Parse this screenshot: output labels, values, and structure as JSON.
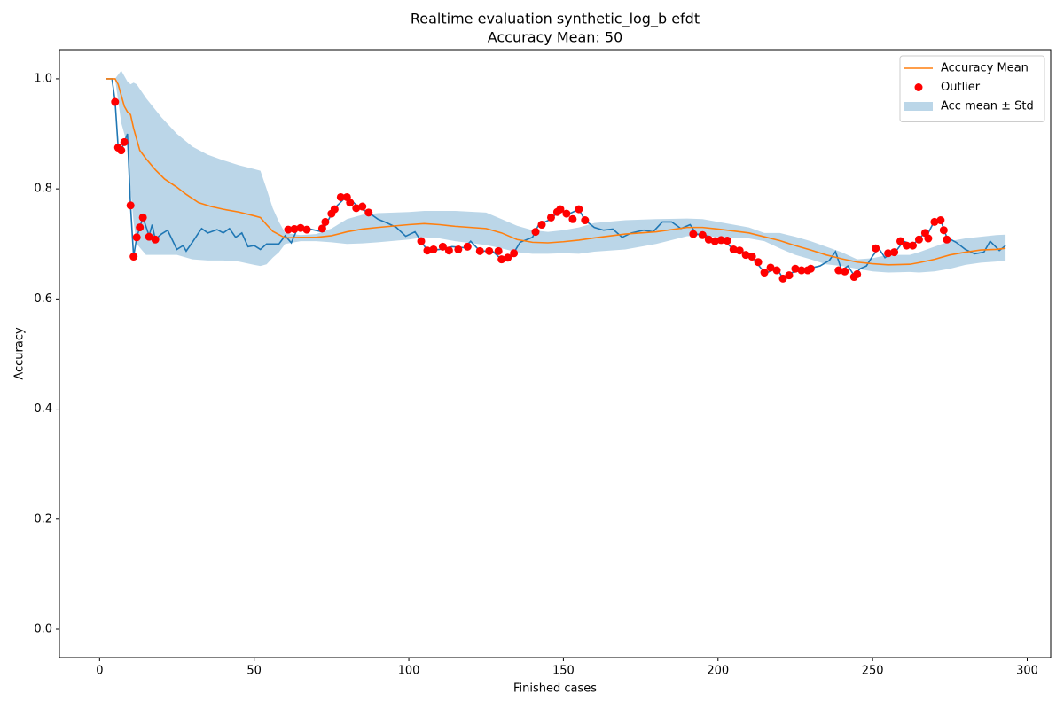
{
  "chart_data": {
    "type": "line",
    "title": "Realtime evaluation synthetic_log_b efdt",
    "subtitle": "Accuracy Mean: 50",
    "xlabel": "Finished cases",
    "ylabel": "Accuracy",
    "xlim": [
      -13,
      307.6
    ],
    "ylim": [
      -0.0515,
      1.053
    ],
    "xticks": [
      0,
      50,
      100,
      150,
      200,
      250,
      300
    ],
    "yticks": [
      {
        "value": 0,
        "label": "0.0"
      },
      {
        "value": 0.2,
        "label": "0.2"
      },
      {
        "value": 0.4,
        "label": "0.4"
      },
      {
        "value": 0.6,
        "label": "0.6"
      },
      {
        "value": 0.8,
        "label": "0.8"
      },
      {
        "value": 1,
        "label": "1.0"
      }
    ],
    "legend": "upper right",
    "band": {
      "name": "Acc mean ± Std",
      "color": "#1f77b4",
      "opacity": 0.3,
      "x": [
        2,
        5,
        7,
        9,
        10,
        11,
        12,
        15,
        20,
        25,
        30,
        35,
        40,
        45,
        50,
        52,
        54,
        56,
        58,
        60,
        65,
        70,
        75,
        80,
        85,
        90,
        100,
        105,
        110,
        115,
        125,
        130,
        135,
        140,
        145,
        150,
        155,
        160,
        170,
        180,
        190,
        195,
        200,
        210,
        215,
        220,
        225,
        230,
        235,
        240,
        245,
        250,
        255,
        262,
        265,
        270,
        275,
        280,
        285,
        290,
        293
      ],
      "upper": [
        1.0,
        1.0,
        1.015,
        0.995,
        0.99,
        0.993,
        0.99,
        0.965,
        0.93,
        0.9,
        0.877,
        0.862,
        0.852,
        0.843,
        0.836,
        0.833,
        0.8,
        0.765,
        0.74,
        0.72,
        0.716,
        0.718,
        0.728,
        0.745,
        0.753,
        0.756,
        0.758,
        0.76,
        0.76,
        0.76,
        0.757,
        0.745,
        0.733,
        0.725,
        0.722,
        0.725,
        0.73,
        0.738,
        0.743,
        0.745,
        0.746,
        0.745,
        0.74,
        0.73,
        0.72,
        0.72,
        0.713,
        0.705,
        0.695,
        0.685,
        0.672,
        0.674,
        0.68,
        0.68,
        0.685,
        0.695,
        0.705,
        0.71,
        0.713,
        0.716,
        0.717
      ],
      "lower": [
        1.0,
        1.0,
        0.92,
        0.88,
        0.8,
        0.74,
        0.7,
        0.68,
        0.68,
        0.68,
        0.672,
        0.67,
        0.67,
        0.668,
        0.662,
        0.66,
        0.663,
        0.675,
        0.685,
        0.7,
        0.705,
        0.705,
        0.703,
        0.7,
        0.701,
        0.703,
        0.708,
        0.712,
        0.71,
        0.705,
        0.698,
        0.692,
        0.685,
        0.682,
        0.682,
        0.683,
        0.682,
        0.686,
        0.69,
        0.7,
        0.714,
        0.715,
        0.712,
        0.71,
        0.705,
        0.692,
        0.68,
        0.672,
        0.663,
        0.66,
        0.655,
        0.65,
        0.648,
        0.649,
        0.648,
        0.65,
        0.655,
        0.662,
        0.666,
        0.668,
        0.67
      ]
    },
    "series": [
      {
        "kind": "line",
        "color": "#1f77b4",
        "x": [
          2,
          4,
          5,
          6,
          7,
          8,
          9,
          10,
          11,
          12,
          13,
          14,
          16,
          17,
          18,
          20,
          22,
          25,
          27,
          28,
          30,
          32,
          33,
          35,
          38,
          40,
          42,
          44,
          46,
          48,
          50,
          52,
          54,
          58,
          60,
          62,
          64,
          68,
          72,
          76,
          80,
          84,
          87,
          90,
          93,
          96,
          99,
          102,
          104,
          106,
          110,
          114,
          118,
          120,
          123,
          127,
          130,
          133,
          136,
          140,
          142,
          146,
          149,
          152,
          155,
          157,
          160,
          163,
          166,
          169,
          172,
          176,
          179,
          182,
          185,
          188,
          191,
          193,
          196,
          199,
          202,
          205,
          208,
          211,
          214,
          216,
          219,
          221,
          224,
          227,
          230,
          233,
          236,
          238,
          240,
          242,
          244,
          246,
          248,
          250,
          252,
          254,
          256,
          258,
          260,
          263,
          266,
          268,
          270,
          272,
          274,
          277,
          280,
          283,
          286,
          288,
          291,
          293
        ],
        "values": [
          1,
          1,
          0.96,
          0.875,
          0.87,
          0.885,
          0.9,
          0.77,
          0.677,
          0.712,
          0.73,
          0.748,
          0.715,
          0.735,
          0.708,
          0.718,
          0.725,
          0.69,
          0.697,
          0.687,
          0.703,
          0.72,
          0.728,
          0.72,
          0.726,
          0.72,
          0.728,
          0.712,
          0.72,
          0.695,
          0.697,
          0.69,
          0.7,
          0.7,
          0.715,
          0.702,
          0.728,
          0.727,
          0.722,
          0.765,
          0.787,
          0.765,
          0.757,
          0.745,
          0.738,
          0.73,
          0.714,
          0.722,
          0.705,
          0.688,
          0.69,
          0.695,
          0.693,
          0.705,
          0.687,
          0.687,
          0.672,
          0.675,
          0.703,
          0.712,
          0.735,
          0.745,
          0.763,
          0.755,
          0.763,
          0.743,
          0.73,
          0.725,
          0.727,
          0.712,
          0.72,
          0.725,
          0.722,
          0.74,
          0.74,
          0.728,
          0.735,
          0.718,
          0.716,
          0.705,
          0.706,
          0.69,
          0.686,
          0.677,
          0.655,
          0.648,
          0.657,
          0.637,
          0.648,
          0.652,
          0.656,
          0.66,
          0.67,
          0.686,
          0.652,
          0.66,
          0.643,
          0.655,
          0.66,
          0.678,
          0.692,
          0.675,
          0.683,
          0.69,
          0.705,
          0.698,
          0.715,
          0.72,
          0.742,
          0.743,
          0.712,
          0.703,
          0.69,
          0.682,
          0.685,
          0.705,
          0.688,
          0.697
        ]
      },
      {
        "kind": "line",
        "name": "Accuracy Mean",
        "color": "#ff7f0e",
        "x": [
          2,
          5,
          6,
          7,
          8,
          9,
          10,
          11,
          12,
          13,
          15,
          18,
          21,
          25,
          28,
          32,
          36,
          40,
          45,
          50,
          52,
          54,
          56,
          58,
          60,
          65,
          70,
          75,
          80,
          85,
          90,
          100,
          105,
          110,
          115,
          125,
          130,
          135,
          140,
          145,
          150,
          155,
          160,
          170,
          180,
          190,
          195,
          200,
          210,
          215,
          220,
          225,
          230,
          235,
          240,
          245,
          250,
          255,
          262,
          265,
          270,
          275,
          280,
          285,
          290,
          293
        ],
        "values": [
          1.0,
          1.0,
          0.99,
          0.97,
          0.95,
          0.94,
          0.935,
          0.91,
          0.89,
          0.87,
          0.855,
          0.835,
          0.818,
          0.803,
          0.79,
          0.775,
          0.768,
          0.763,
          0.758,
          0.751,
          0.748,
          0.735,
          0.723,
          0.717,
          0.711,
          0.712,
          0.712,
          0.715,
          0.722,
          0.727,
          0.73,
          0.735,
          0.737,
          0.735,
          0.732,
          0.728,
          0.72,
          0.708,
          0.703,
          0.702,
          0.704,
          0.707,
          0.711,
          0.718,
          0.722,
          0.73,
          0.73,
          0.727,
          0.72,
          0.713,
          0.706,
          0.697,
          0.689,
          0.68,
          0.673,
          0.667,
          0.664,
          0.662,
          0.663,
          0.666,
          0.672,
          0.68,
          0.685,
          0.689,
          0.69,
          0.692
        ]
      },
      {
        "kind": "markers",
        "name": "Outlier",
        "color": "#ff0000",
        "x": [
          5,
          6,
          7,
          8,
          10,
          11,
          12,
          13,
          14,
          16,
          18,
          61,
          63,
          65,
          67,
          72,
          73,
          75,
          76,
          78,
          80,
          81,
          83,
          85,
          87,
          104,
          106,
          108,
          111,
          113,
          116,
          119,
          123,
          126,
          129,
          130,
          132,
          134,
          141,
          143,
          146,
          148,
          149,
          151,
          153,
          155,
          157,
          192,
          195,
          197,
          199,
          201,
          203,
          205,
          207,
          209,
          211,
          213,
          215,
          217,
          219,
          221,
          223,
          225,
          227,
          229,
          230,
          239,
          241,
          244,
          245,
          251,
          255,
          257,
          259,
          261,
          263,
          265,
          267,
          268,
          270,
          272,
          273,
          274
        ],
        "values": [
          0.958,
          0.875,
          0.87,
          0.885,
          0.77,
          0.677,
          0.712,
          0.73,
          0.748,
          0.713,
          0.708,
          0.726,
          0.727,
          0.729,
          0.726,
          0.728,
          0.74,
          0.755,
          0.763,
          0.785,
          0.785,
          0.775,
          0.765,
          0.768,
          0.757,
          0.705,
          0.688,
          0.69,
          0.695,
          0.688,
          0.69,
          0.695,
          0.687,
          0.687,
          0.687,
          0.672,
          0.675,
          0.683,
          0.722,
          0.735,
          0.748,
          0.758,
          0.763,
          0.755,
          0.745,
          0.763,
          0.743,
          0.718,
          0.716,
          0.708,
          0.705,
          0.707,
          0.706,
          0.69,
          0.688,
          0.68,
          0.677,
          0.667,
          0.648,
          0.657,
          0.652,
          0.637,
          0.643,
          0.655,
          0.652,
          0.652,
          0.655,
          0.652,
          0.65,
          0.64,
          0.645,
          0.692,
          0.683,
          0.685,
          0.705,
          0.697,
          0.697,
          0.708,
          0.72,
          0.71,
          0.74,
          0.743,
          0.725,
          0.708
        ]
      }
    ]
  }
}
